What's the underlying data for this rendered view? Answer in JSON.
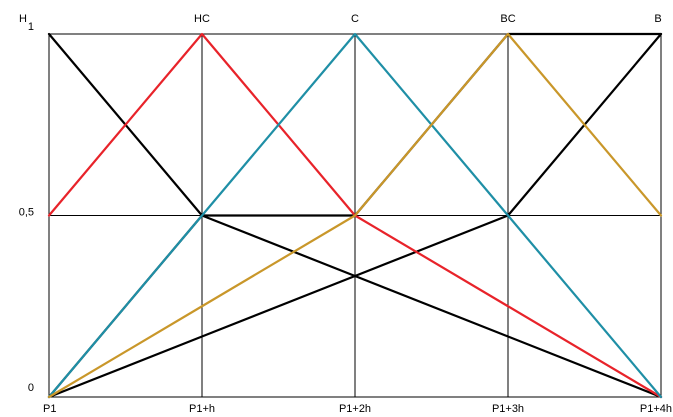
{
  "chart_data": {
    "type": "line",
    "x": [
      "P1",
      "P1+h",
      "P1+2h",
      "P1+3h",
      "P1+4h"
    ],
    "yticks": [
      "0",
      "0,5",
      "1"
    ],
    "ylim": [
      0,
      1
    ],
    "top_labels": [
      "H",
      "HC",
      "C",
      "BC",
      "B"
    ],
    "grid": true,
    "series": [
      {
        "color": "#000000",
        "values": [
          0,
          0.5,
          0.5,
          1,
          1
        ],
        "comment_points": "segments form X shapes"
      },
      {
        "color": "#000000",
        "values": [
          1,
          0.5,
          0.3333,
          0.1667,
          0
        ]
      },
      {
        "color": "#000000",
        "values": [
          0,
          0.1667,
          0.3333,
          0.5,
          1
        ]
      },
      {
        "color": "#e8232a",
        "values": [
          0.5,
          1,
          0.5,
          0.25,
          0
        ]
      },
      {
        "color": "#1f8fa6",
        "values": [
          0,
          0.5,
          1,
          0.5,
          0
        ]
      },
      {
        "color": "#c9972a",
        "values": [
          0,
          0.25,
          0.5,
          1,
          0.5
        ]
      }
    ]
  }
}
